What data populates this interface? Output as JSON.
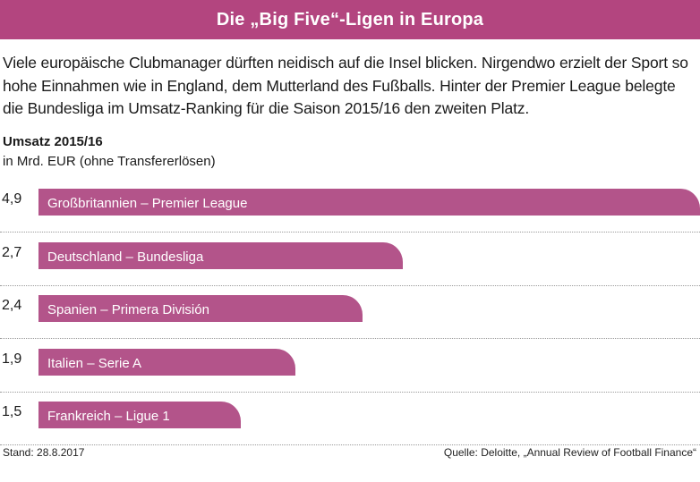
{
  "header": {
    "title": "Die „Big Five“-Ligen in Europa"
  },
  "intro": "Viele europäische Clubmanager dürften neidisch auf die Insel blicken. Nirgendwo erzielt der Sport so hohe Einnahmen wie in England, dem Mutterland des Fußballs. Hinter der Premier League belegte die Bundesliga im Umsatz-Ranking für die Saison 2015/16 den zweiten Platz.",
  "chart_data": {
    "type": "bar",
    "orientation": "horizontal",
    "title": "Umsatz 2015/16",
    "ylabel": "in Mrd. EUR (ohne Transfererlösen)",
    "categories": [
      "Großbritannien – Premier League",
      "Deutschland – Bundesliga",
      "Spanien – Primera División",
      "Italien – Serie A",
      "Frankreich – Ligue 1"
    ],
    "values": [
      4.9,
      2.7,
      2.4,
      1.9,
      1.5
    ],
    "value_labels": [
      "4,9",
      "2,7",
      "2,4",
      "1,9",
      "1,5"
    ],
    "xlim": [
      0,
      4.9
    ]
  },
  "colors": {
    "accent": "#b3457f",
    "bar": "#b3548a"
  },
  "footer": {
    "stand": "Stand: 28.8.2017",
    "source": "Quelle: Deloitte, „Annual Review of Football Finance“"
  }
}
